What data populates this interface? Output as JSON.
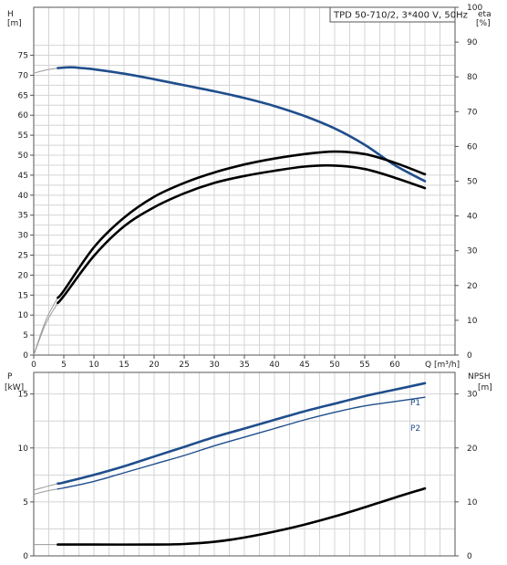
{
  "chart_data": [
    {
      "type": "line",
      "title": "TPD 50-710/2, 3*400 V, 50Hz",
      "x_axis": {
        "label": "Q [m³/h]",
        "ticks": [
          0,
          5,
          10,
          15,
          20,
          25,
          30,
          35,
          40,
          45,
          50,
          55,
          60
        ],
        "range": [
          0,
          70
        ]
      },
      "left_axis": {
        "label": "H",
        "unit": "[m]",
        "ticks": [
          0,
          5,
          10,
          15,
          20,
          25,
          30,
          35,
          40,
          45,
          50,
          55,
          60,
          65,
          70,
          75
        ],
        "range": [
          0,
          87
        ]
      },
      "right_axis": {
        "label": "eta",
        "unit": "[%]",
        "ticks": [
          0,
          10,
          20,
          30,
          40,
          50,
          60,
          70,
          80,
          90,
          100
        ],
        "range": [
          0,
          100
        ]
      },
      "grid": true,
      "series": [
        {
          "id": "H",
          "axis": "left",
          "color": "#1f4e8c",
          "points_thin": [
            [
              0,
              70.5
            ],
            [
              2,
              71.3
            ],
            [
              4,
              71.8
            ]
          ],
          "points": [
            [
              4,
              71.8
            ],
            [
              6,
              72.0
            ],
            [
              8,
              71.8
            ],
            [
              10,
              71.5
            ],
            [
              15,
              70.4
            ],
            [
              20,
              69.0
            ],
            [
              25,
              67.5
            ],
            [
              30,
              66.0
            ],
            [
              35,
              64.3
            ],
            [
              40,
              62.3
            ],
            [
              45,
              59.8
            ],
            [
              50,
              56.7
            ],
            [
              55,
              52.6
            ],
            [
              60,
              47.5
            ],
            [
              65,
              43.5
            ]
          ]
        },
        {
          "id": "eta_pump",
          "axis": "right",
          "color": "#000000",
          "points_thin": [
            [
              0,
              0
            ],
            [
              2,
              10
            ],
            [
              4,
              16.5
            ]
          ],
          "points": [
            [
              4,
              16.5
            ],
            [
              5,
              18.5
            ],
            [
              10,
              31
            ],
            [
              15,
              39.5
            ],
            [
              20,
              45.5
            ],
            [
              25,
              49.5
            ],
            [
              30,
              52.5
            ],
            [
              35,
              54.8
            ],
            [
              40,
              56.5
            ],
            [
              45,
              57.8
            ],
            [
              50,
              58.5
            ],
            [
              55,
              57.8
            ],
            [
              60,
              55.3
            ],
            [
              65,
              52
            ]
          ]
        },
        {
          "id": "eta_total",
          "axis": "right",
          "color": "#000000",
          "points_thin": [
            [
              0,
              0
            ],
            [
              2,
              9
            ],
            [
              4,
              15
            ]
          ],
          "points": [
            [
              4,
              15
            ],
            [
              5,
              17
            ],
            [
              10,
              28.5
            ],
            [
              15,
              37
            ],
            [
              20,
              42.5
            ],
            [
              25,
              46.5
            ],
            [
              30,
              49.5
            ],
            [
              35,
              51.5
            ],
            [
              40,
              53
            ],
            [
              45,
              54.2
            ],
            [
              50,
              54.5
            ],
            [
              55,
              53.5
            ],
            [
              60,
              51
            ],
            [
              65,
              48
            ]
          ]
        }
      ]
    },
    {
      "type": "line",
      "left_axis": {
        "label": "P",
        "unit": "[kW]",
        "ticks": [
          0,
          5,
          10,
          15
        ],
        "range": [
          0,
          17
        ]
      },
      "right_axis": {
        "label": "NPSH",
        "unit": "[m]",
        "ticks": [
          0,
          10,
          20,
          30
        ],
        "range": [
          0,
          34
        ]
      },
      "x_axis": {
        "range": [
          0,
          70
        ]
      },
      "grid": true,
      "series": [
        {
          "name": "P1",
          "axis": "left",
          "color": "#1f4e8c",
          "points_thin": [
            [
              0,
              6.1
            ],
            [
              2,
              6.4
            ],
            [
              4,
              6.7
            ]
          ],
          "points": [
            [
              4,
              6.7
            ],
            [
              5,
              6.8
            ],
            [
              10,
              7.5
            ],
            [
              15,
              8.3
            ],
            [
              20,
              9.2
            ],
            [
              25,
              10.1
            ],
            [
              30,
              11.0
            ],
            [
              35,
              11.8
            ],
            [
              40,
              12.6
            ],
            [
              45,
              13.4
            ],
            [
              50,
              14.1
            ],
            [
              55,
              14.8
            ],
            [
              60,
              15.4
            ],
            [
              65,
              16.0
            ]
          ]
        },
        {
          "name": "P2",
          "axis": "left",
          "color": "#1f4e8c",
          "points_thin": [
            [
              0,
              5.7
            ],
            [
              2,
              6.0
            ],
            [
              4,
              6.2
            ]
          ],
          "points": [
            [
              4,
              6.2
            ],
            [
              5,
              6.3
            ],
            [
              10,
              6.9
            ],
            [
              15,
              7.7
            ],
            [
              20,
              8.5
            ],
            [
              25,
              9.3
            ],
            [
              30,
              10.2
            ],
            [
              35,
              11.0
            ],
            [
              40,
              11.8
            ],
            [
              45,
              12.6
            ],
            [
              50,
              13.3
            ],
            [
              55,
              13.9
            ],
            [
              60,
              14.3
            ],
            [
              65,
              14.7
            ]
          ]
        },
        {
          "id": "NPSH",
          "axis": "right",
          "color": "#000000",
          "points_thin": [
            [
              0,
              2.1
            ],
            [
              2,
              2.1
            ],
            [
              4,
              2.1
            ]
          ],
          "points": [
            [
              4,
              2.1
            ],
            [
              10,
              2.1
            ],
            [
              20,
              2.1
            ],
            [
              25,
              2.2
            ],
            [
              30,
              2.6
            ],
            [
              35,
              3.4
            ],
            [
              40,
              4.5
            ],
            [
              45,
              5.8
            ],
            [
              50,
              7.3
            ],
            [
              55,
              9.0
            ],
            [
              60,
              10.8
            ],
            [
              65,
              12.5
            ]
          ]
        }
      ]
    }
  ]
}
